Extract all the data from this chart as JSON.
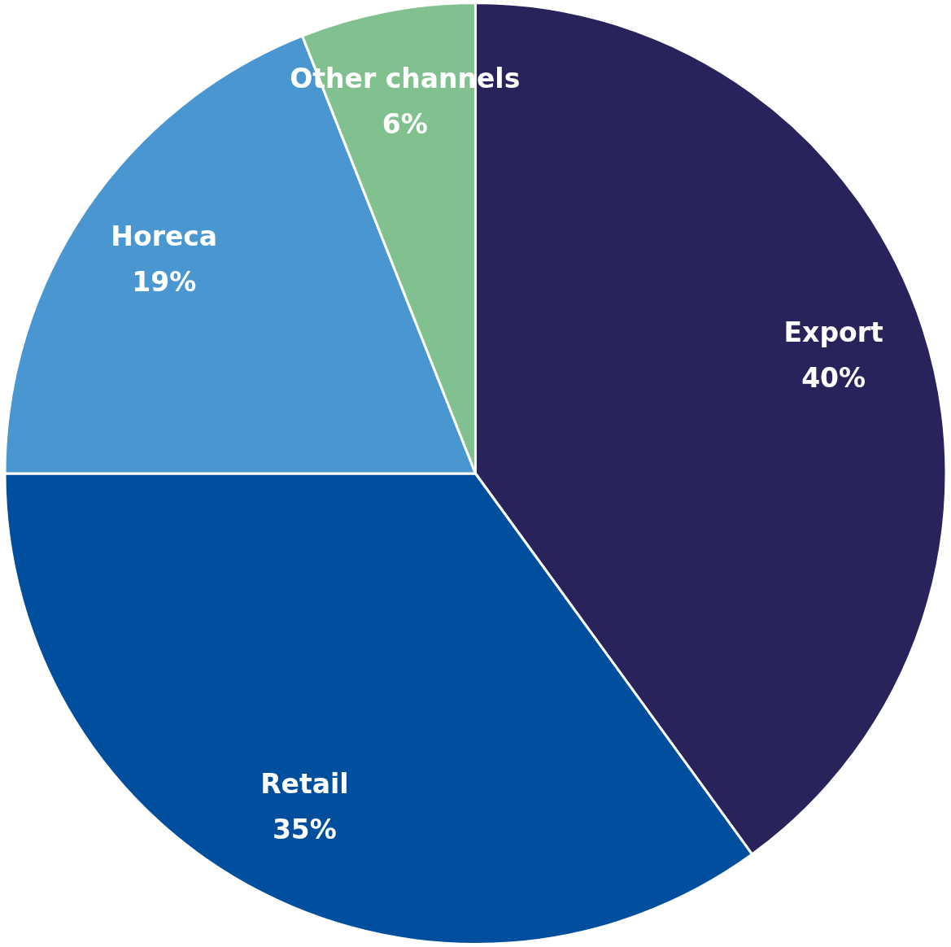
{
  "chart_data": {
    "type": "pie",
    "categories": [
      "Export",
      "Retail",
      "Horeca",
      "Other channels"
    ],
    "values": [
      40,
      35,
      19,
      6
    ],
    "value_labels": [
      "40%",
      "35%",
      "19%",
      "6%"
    ],
    "colors": [
      "#29235c",
      "#004f9f",
      "#4a96d1",
      "#80c18f"
    ],
    "legend": false
  }
}
